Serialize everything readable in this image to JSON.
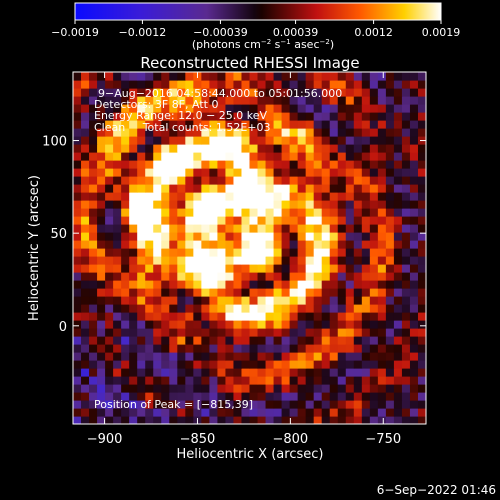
{
  "colorbar": {
    "tick_labels": [
      "−0.0019",
      "−0.0012",
      "−0.00039",
      "0.00039",
      "0.0012",
      "0.0019"
    ],
    "tick_values": [
      -0.0019,
      -0.0012,
      -0.00039,
      0.00039,
      0.0012,
      0.0019
    ],
    "range": [
      -0.0019,
      0.0019
    ],
    "units_prefix": "(photons cm",
    "units_exp1": "−2",
    "units_mid": " s",
    "units_exp2": "−1",
    "units_mid2": " asec",
    "units_exp3": "−2",
    "units_suffix": ")"
  },
  "title": "Reconstructed RHESSI Image",
  "annotations": {
    "time_range": "9−Aug−2016 04:58:44.000 to 05:01:56.000",
    "detectors": "Detectors: 3F 8F, Att 0",
    "energy": "Energy Range: 12.0 − 25.0 keV",
    "clean": "Clean     Total counts: 1.52E+03",
    "peak": "Position of Peak = [−815,39]"
  },
  "footer_timestamp": "6−Sep−2022 01:46",
  "chart_data": {
    "type": "heatmap",
    "title": "Reconstructed RHESSI Image",
    "xlabel": "Heliocentric X (arcsec)",
    "ylabel": "Heliocentric Y (arcsec)",
    "xlim": [
      -917,
      -727
    ],
    "ylim": [
      -53,
      137
    ],
    "x_ticks": [
      -900,
      -850,
      -800,
      -750
    ],
    "x_tick_labels": [
      "−900",
      "−850",
      "−800",
      "−750"
    ],
    "y_ticks": [
      0,
      50,
      100
    ],
    "y_tick_labels": [
      "0",
      "50",
      "100"
    ],
    "colorbar_range": [
      -0.0019,
      0.0019
    ],
    "peak_position": [
      -815,
      39
    ],
    "sources": [
      {
        "x": -847,
        "y": 65,
        "amplitude": 1.0
      },
      {
        "x": -815,
        "y": 39,
        "amplitude": 1.0
      },
      {
        "x": -862,
        "y": 88,
        "amplitude": 0.55
      }
    ],
    "colors": {
      "low": "#1a14ff",
      "mid_low": "#6a2aa8",
      "zero": "#000000",
      "mid_high": "#e01810",
      "high": "#ffffff"
    }
  }
}
